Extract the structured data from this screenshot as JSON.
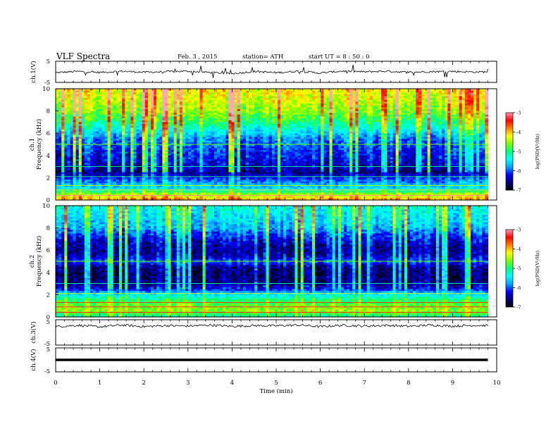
{
  "header": {
    "title": "VLF  Spectra",
    "date": "Feb. 3  , 2015",
    "station": "station= ATH",
    "start": "start  UT =   8 : 50 : 0"
  },
  "colors": {
    "axis": "#000000",
    "background": "#ffffff",
    "colormap": [
      "#000000",
      "#00007a",
      "#0000ff",
      "#00a8ff",
      "#00ffff",
      "#00ff7f",
      "#7fff00",
      "#ffff00",
      "#ff7f00",
      "#ff0000",
      "#ff9ab4",
      "#ffffff"
    ]
  },
  "chart_data": [
    {
      "type": "line",
      "panel": "ch1",
      "ylabel": "ch.1(V)",
      "ylim": [
        -5,
        5
      ],
      "yticks": [
        "5",
        "-5"
      ],
      "xlim": [
        0,
        10
      ],
      "series": [
        {
          "x": [
            0,
            0.5,
            1,
            1.5,
            2,
            2.5,
            3,
            3.5,
            4,
            4.5,
            5,
            5.5,
            6,
            6.5,
            7,
            7.5,
            8,
            8.5,
            9,
            9.5,
            9.8
          ],
          "values": [
            -0.4,
            0.2,
            -0.3,
            0.3,
            -0.2,
            0.1,
            0.3,
            -0.3,
            -0.9,
            0.2,
            -0.4,
            0.3,
            -0.6,
            0.4,
            0.0,
            0.3,
            -0.2,
            0.1,
            0.2,
            -0.1,
            0.0
          ]
        }
      ]
    },
    {
      "type": "heatmap",
      "panel": "ch1-spectrogram",
      "ylabel": "ch.1\nFrequency (kHz)",
      "ylabel_top": "ch.1",
      "ylabel_bottom": "Frequency (kHz)",
      "xlim": [
        0,
        10
      ],
      "ylim": [
        0,
        10
      ],
      "yticks": [
        "0",
        "2",
        "4",
        "6",
        "8",
        "10"
      ],
      "data_end_min": 9.8,
      "z_unit": "log(PSD)",
      "zlim": [
        -7,
        -3
      ],
      "profile_freq_khz": [
        0,
        0.5,
        1,
        1.5,
        2,
        2.5,
        3,
        3.5,
        4,
        4.5,
        5,
        5.5,
        6,
        6.5,
        7,
        7.5,
        8,
        8.5,
        9,
        9.5,
        10
      ],
      "profile_logpsd": [
        -4.0,
        -4.5,
        -5.6,
        -5.8,
        -6.2,
        -6.6,
        -6.4,
        -6.3,
        -6.2,
        -6.1,
        -6.0,
        -5.9,
        -5.6,
        -5.3,
        -5.0,
        -4.8,
        -4.6,
        -4.5,
        -4.4,
        -4.3,
        -4.2
      ],
      "colorbar": {
        "ticks": [
          "-3",
          "-4",
          "-5",
          "-6",
          "-7"
        ],
        "label": "log(PSD(V²/Hz)"
      }
    },
    {
      "type": "heatmap",
      "panel": "ch2-spectrogram",
      "ylabel": "ch.2\nFrequency (kHz)",
      "ylabel_top": "ch.2",
      "ylabel_bottom": "Frequency (kHz)",
      "xlim": [
        0,
        10
      ],
      "ylim": [
        0,
        10
      ],
      "yticks": [
        "0",
        "2",
        "4",
        "6",
        "8",
        "10"
      ],
      "data_end_min": 9.8,
      "z_unit": "log(PSD)",
      "zlim": [
        -7,
        -3
      ],
      "profile_freq_khz": [
        0,
        0.5,
        1,
        1.5,
        2,
        2.5,
        3,
        3.5,
        4,
        4.5,
        5,
        5.5,
        6,
        6.5,
        7,
        7.5,
        8,
        8.5,
        9,
        9.5,
        10
      ],
      "profile_logpsd": [
        -5.2,
        -4.6,
        -4.7,
        -5.0,
        -5.5,
        -6.2,
        -6.5,
        -6.6,
        -6.6,
        -6.5,
        -6.0,
        -6.4,
        -6.5,
        -6.4,
        -6.2,
        -6.0,
        -5.7,
        -5.6,
        -5.5,
        -5.4,
        -5.3
      ],
      "colorbar": {
        "ticks": [
          "-3",
          "-4",
          "-5",
          "-6",
          "-7"
        ],
        "label": "log(PSD(V²/Hz)"
      }
    },
    {
      "type": "line",
      "panel": "ch3",
      "ylabel": "ch.3(V)",
      "ylim": [
        -5,
        5
      ],
      "yticks": [
        "5",
        "-5"
      ],
      "xlim": [
        0,
        10
      ],
      "series": [
        {
          "x": [
            0,
            0.5,
            1,
            1.5,
            2,
            2.5,
            3,
            3.5,
            4,
            4.5,
            5,
            5.5,
            6,
            6.5,
            7,
            7.5,
            8,
            8.5,
            9,
            9.5,
            9.8
          ],
          "values": [
            2.3,
            2.8,
            2.2,
            2.9,
            2.3,
            2.7,
            2.5,
            2.9,
            2.4,
            2.7,
            2.6,
            2.9,
            2.3,
            2.8,
            2.5,
            2.8,
            2.4,
            2.9,
            2.5,
            2.8,
            2.7
          ]
        }
      ]
    },
    {
      "type": "line",
      "panel": "ch4",
      "ylabel": "ch.4(V)",
      "ylim": [
        -5,
        5
      ],
      "yticks": [
        "5",
        "-5"
      ],
      "xlim": [
        0,
        10
      ],
      "xlabel": "Time  (min)",
      "xticks": [
        "0",
        "1",
        "2",
        "3",
        "4",
        "5",
        "6",
        "7",
        "8",
        "9",
        "10"
      ],
      "series": [
        {
          "x": [
            0,
            9.8
          ],
          "values": [
            0,
            0
          ]
        }
      ]
    }
  ]
}
